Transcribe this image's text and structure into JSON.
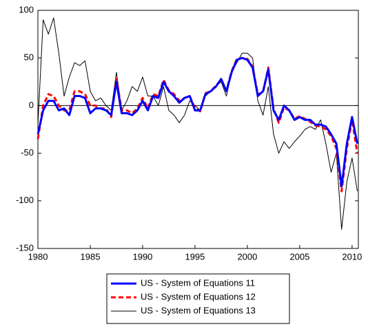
{
  "chart_data": {
    "type": "line",
    "x": [
      1980.0,
      1980.5,
      1981.0,
      1981.5,
      1982.0,
      1982.5,
      1983.0,
      1983.5,
      1984.0,
      1984.5,
      1985.0,
      1985.5,
      1986.0,
      1986.5,
      1987.0,
      1987.5,
      1988.0,
      1988.5,
      1989.0,
      1989.5,
      1990.0,
      1990.5,
      1991.0,
      1991.5,
      1992.0,
      1992.5,
      1993.0,
      1993.5,
      1994.0,
      1994.5,
      1995.0,
      1995.5,
      1996.0,
      1996.5,
      1997.0,
      1997.5,
      1998.0,
      1998.5,
      1999.0,
      1999.5,
      2000.0,
      2000.5,
      2001.0,
      2001.5,
      2002.0,
      2002.5,
      2003.0,
      2003.5,
      2004.0,
      2004.5,
      2005.0,
      2005.5,
      2006.0,
      2006.5,
      2007.0,
      2007.5,
      2008.0,
      2008.5,
      2009.0,
      2009.5,
      2010.0,
      2010.5
    ],
    "series": [
      {
        "name": "US - System of Equations 11",
        "color": "#0000ff",
        "width": 3,
        "dash": false,
        "values": [
          -30,
          -5,
          5,
          5,
          -5,
          -3,
          -10,
          10,
          10,
          8,
          -8,
          -3,
          -3,
          -5,
          -10,
          25,
          -8,
          -8,
          -10,
          -5,
          5,
          -5,
          10,
          8,
          25,
          15,
          10,
          3,
          8,
          10,
          -5,
          -5,
          12,
          15,
          20,
          28,
          15,
          35,
          48,
          50,
          48,
          40,
          10,
          15,
          38,
          -5,
          -15,
          0,
          -5,
          -15,
          -12,
          -15,
          -15,
          -20,
          -20,
          -22,
          -30,
          -40,
          -85,
          -40,
          -12,
          -40
        ]
      },
      {
        "name": "US - System of Equations 12",
        "color": "#ff0000",
        "width": 3,
        "dash": true,
        "values": [
          -35,
          0,
          12,
          10,
          0,
          -5,
          -5,
          15,
          15,
          12,
          0,
          0,
          -3,
          -3,
          -12,
          28,
          -5,
          -5,
          -8,
          -3,
          8,
          -3,
          12,
          10,
          27,
          16,
          12,
          5,
          8,
          10,
          -3,
          -6,
          13,
          15,
          21,
          27,
          16,
          36,
          49,
          50,
          49,
          41,
          12,
          14,
          40,
          -3,
          -18,
          -2,
          -5,
          -14,
          -11,
          -14,
          -17,
          -21,
          -22,
          -25,
          -32,
          -45,
          -90,
          -45,
          -15,
          -50
        ]
      },
      {
        "name": "US - System of Equations 13",
        "color": "#000000",
        "width": 1,
        "dash": false,
        "values": [
          -20,
          90,
          75,
          92,
          55,
          10,
          30,
          45,
          42,
          47,
          15,
          5,
          8,
          0,
          -5,
          35,
          -5,
          5,
          20,
          15,
          30,
          10,
          10,
          0,
          20,
          -5,
          -10,
          -18,
          -10,
          5,
          0,
          -5,
          10,
          15,
          20,
          25,
          10,
          35,
          45,
          55,
          55,
          50,
          5,
          -10,
          20,
          -30,
          -50,
          -38,
          -45,
          -38,
          -32,
          -25,
          -22,
          -25,
          -15,
          -40,
          -70,
          -50,
          -130,
          -80,
          -55,
          -90
        ]
      }
    ],
    "xlim": [
      1980,
      2010.6
    ],
    "xticks": [
      1980,
      1985,
      1990,
      1995,
      2000,
      2005,
      2010
    ],
    "ylim": [
      -150,
      100
    ],
    "yticks": [
      -150,
      -100,
      -50,
      0,
      50,
      100
    ],
    "zero_line": true
  }
}
